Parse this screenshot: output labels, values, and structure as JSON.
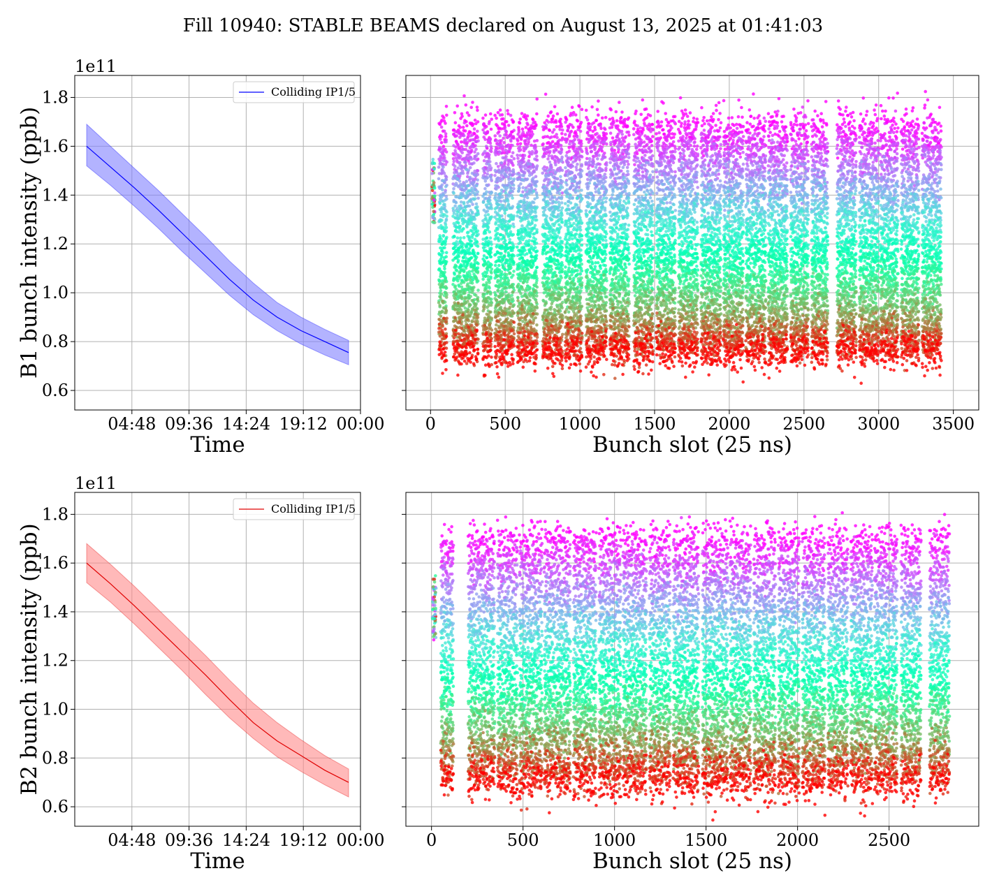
{
  "figure": {
    "title": "Fill 10940: STABLE BEAMS declared on August 13, 2025 at 01:41:03"
  },
  "chart_data": [
    {
      "id": "b1-time",
      "type": "line",
      "xlabel": "Time",
      "ylabel": "B1 bunch intensity (ppb)",
      "y_offset_text": "1e11",
      "xlim": [
        0,
        24
      ],
      "ylim": [
        0.52,
        1.89
      ],
      "x_ticks": [
        4.8,
        9.6,
        14.4,
        19.2,
        24
      ],
      "x_tick_labels": [
        "04:48",
        "09:36",
        "14:24",
        "19:12",
        "00:00"
      ],
      "y_ticks": [
        0.6,
        0.8,
        1.0,
        1.2,
        1.4,
        1.6,
        1.8
      ],
      "y_tick_labels": [
        "0.6",
        "0.8",
        "1.0",
        "1.2",
        "1.4",
        "1.6",
        "1.8"
      ],
      "grid": true,
      "legend": "upper right",
      "series": [
        {
          "name": "Colliding IP1/5",
          "color": "#0000ff",
          "band_color": "#8080ff",
          "x": [
            1,
            3,
            5,
            7,
            9,
            11,
            13,
            15,
            17,
            19,
            21,
            23
          ],
          "y": [
            1.6,
            1.515,
            1.43,
            1.34,
            1.245,
            1.15,
            1.055,
            0.97,
            0.9,
            0.845,
            0.8,
            0.755
          ],
          "y_low": [
            1.52,
            1.44,
            1.355,
            1.265,
            1.17,
            1.08,
            0.99,
            0.91,
            0.845,
            0.79,
            0.745,
            0.705
          ],
          "y_high": [
            1.69,
            1.6,
            1.51,
            1.42,
            1.325,
            1.23,
            1.13,
            1.04,
            0.96,
            0.9,
            0.85,
            0.805
          ]
        }
      ]
    },
    {
      "id": "b1-slot",
      "type": "scatter",
      "xlabel": "Bunch slot (25 ns)",
      "ylabel": "",
      "xlim": [
        -165,
        3670
      ],
      "ylim": [
        0.52,
        1.89
      ],
      "x_ticks": [
        0,
        500,
        1000,
        1500,
        2000,
        2500,
        3000,
        3500
      ],
      "x_tick_labels": [
        "0",
        "500",
        "1000",
        "1500",
        "2000",
        "2500",
        "3000",
        "3500"
      ],
      "y_ticks": [
        0.6,
        0.8,
        1.0,
        1.2,
        1.4,
        1.6,
        1.8
      ],
      "grid": true,
      "colormap": "rainbow (early = purple, late = red)",
      "bunch_trains": [
        [
          10,
          30
        ],
        [
          55,
          110
        ],
        [
          150,
          320
        ],
        [
          350,
          410
        ],
        [
          430,
          560
        ],
        [
          580,
          715
        ],
        [
          750,
          885
        ],
        [
          900,
          1015
        ],
        [
          1040,
          1180
        ],
        [
          1200,
          1330
        ],
        [
          1360,
          1490
        ],
        [
          1510,
          1640
        ],
        [
          1660,
          1790
        ],
        [
          1810,
          1945
        ],
        [
          1960,
          2095
        ],
        [
          2110,
          2245
        ],
        [
          2260,
          2390
        ],
        [
          2410,
          2530
        ],
        [
          2550,
          2660
        ],
        [
          2720,
          2850
        ],
        [
          2870,
          3000
        ],
        [
          3010,
          3130
        ],
        [
          3150,
          3270
        ],
        [
          3290,
          3420
        ]
      ],
      "y_start_range": [
        1.55,
        1.8
      ],
      "y_end_range": [
        0.66,
        0.85
      ]
    },
    {
      "id": "b2-time",
      "type": "line",
      "xlabel": "Time",
      "ylabel": "B2 bunch intensity (ppb)",
      "y_offset_text": "1e11",
      "xlim": [
        0,
        24
      ],
      "ylim": [
        0.52,
        1.89
      ],
      "x_ticks": [
        4.8,
        9.6,
        14.4,
        19.2,
        24
      ],
      "x_tick_labels": [
        "04:48",
        "09:36",
        "14:24",
        "19:12",
        "00:00"
      ],
      "y_ticks": [
        0.6,
        0.8,
        1.0,
        1.2,
        1.4,
        1.6,
        1.8
      ],
      "y_tick_labels": [
        "0.6",
        "0.8",
        "1.0",
        "1.2",
        "1.4",
        "1.6",
        "1.8"
      ],
      "grid": true,
      "legend": "upper right",
      "series": [
        {
          "name": "Colliding IP1/5",
          "color": "#e00000",
          "band_color": "#ff8a8a",
          "x": [
            1,
            3,
            5,
            7,
            9,
            11,
            13,
            15,
            17,
            19,
            21,
            23
          ],
          "y": [
            1.6,
            1.515,
            1.425,
            1.33,
            1.235,
            1.14,
            1.04,
            0.945,
            0.87,
            0.81,
            0.75,
            0.7
          ],
          "y_low": [
            1.52,
            1.44,
            1.35,
            1.255,
            1.16,
            1.06,
            0.965,
            0.88,
            0.805,
            0.745,
            0.69,
            0.64
          ],
          "y_high": [
            1.68,
            1.595,
            1.505,
            1.41,
            1.315,
            1.22,
            1.12,
            1.025,
            0.945,
            0.875,
            0.81,
            0.755
          ]
        }
      ]
    },
    {
      "id": "b2-slot",
      "type": "scatter",
      "xlabel": "Bunch slot (25 ns)",
      "ylabel": "",
      "xlim": [
        -140,
        2990
      ],
      "ylim": [
        0.52,
        1.89
      ],
      "x_ticks": [
        0,
        500,
        1000,
        1500,
        2000,
        2500
      ],
      "x_tick_labels": [
        "0",
        "500",
        "1000",
        "1500",
        "2000",
        "2500"
      ],
      "y_ticks": [
        0.6,
        0.8,
        1.0,
        1.2,
        1.4,
        1.6,
        1.8
      ],
      "grid": true,
      "colormap": "rainbow (early = purple, late = red)",
      "bunch_trains": [
        [
          5,
          25
        ],
        [
          50,
          120
        ],
        [
          200,
          345
        ],
        [
          360,
          470
        ],
        [
          480,
          605
        ],
        [
          615,
          760
        ],
        [
          775,
          900
        ],
        [
          915,
          1035
        ],
        [
          1045,
          1175
        ],
        [
          1190,
          1305
        ],
        [
          1320,
          1460
        ],
        [
          1480,
          1620
        ],
        [
          1630,
          1745
        ],
        [
          1760,
          1880
        ],
        [
          1895,
          2010
        ],
        [
          2025,
          2150
        ],
        [
          2165,
          2275
        ],
        [
          2290,
          2410
        ],
        [
          2420,
          2545
        ],
        [
          2565,
          2675
        ],
        [
          2720,
          2830
        ]
      ],
      "y_start_range": [
        1.58,
        1.8
      ],
      "y_end_range": [
        0.58,
        0.83
      ]
    }
  ]
}
